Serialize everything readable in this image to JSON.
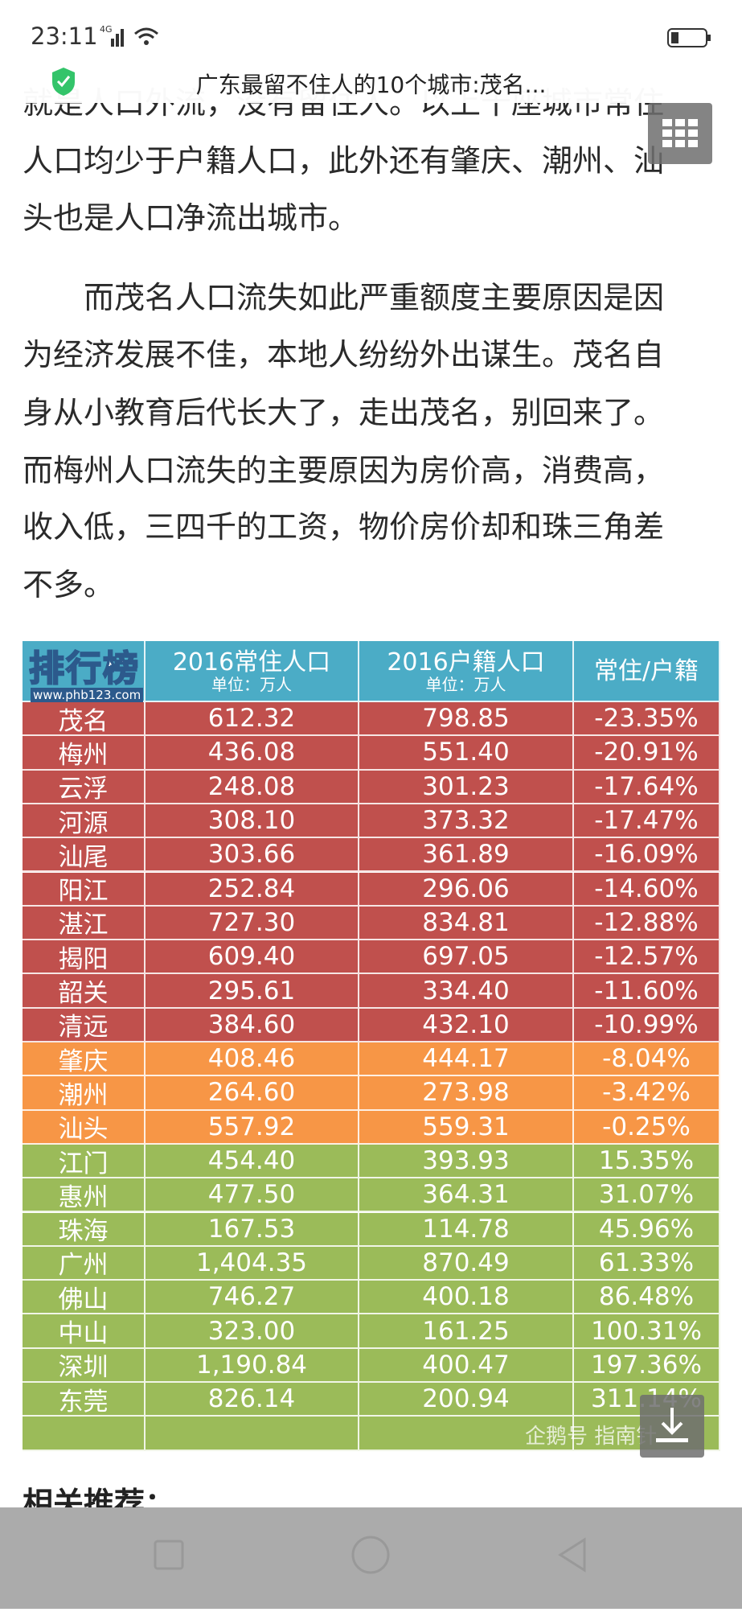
{
  "status_bar": {
    "time": "23:11",
    "network": "4G"
  },
  "title_bar": {
    "title": "广东最留不住人的10个城市:茂名..."
  },
  "article": {
    "paragraphs": [
      [
        "就是人口外流，没有留住人。以上十座城市常住",
        "人口均少于户籍人口，此外还有肇庆、潮州、汕",
        "头也是人口净流出城市。"
      ],
      [
        "而茂名人口流失如此严重额度主要原因是因",
        "为经济发展不佳，本地人纷纷外出谋生。茂名自",
        "身从小教育后代长大了，走出茂名，别回来了。",
        "而梅州人口流失的主要原因为房价高，消费高，",
        "收入低，三四千的工资，物价房价却和珠三角差",
        "不多。"
      ]
    ],
    "related": "相关推荐："
  },
  "table": {
    "logo": "排行榜",
    "logo_url": "www.phb123.com",
    "header": [
      {
        "title": "2016常住人口",
        "unit": "单位：万人"
      },
      {
        "title": "2016户籍人口",
        "unit": "单位：万人"
      },
      {
        "title": "常住/户籍"
      }
    ],
    "rows": [
      [
        "茂名",
        "612.32",
        "798.85",
        "-23.35%"
      ],
      [
        "梅州",
        "436.08",
        "551.40",
        "-20.91%"
      ],
      [
        "云浮",
        "248.08",
        "301.23",
        "-17.64%"
      ],
      [
        "河源",
        "308.10",
        "373.32",
        "-17.47%"
      ],
      [
        "汕尾",
        "303.66",
        "361.89",
        "-16.09%"
      ],
      [
        "阳江",
        "252.84",
        "296.06",
        "-14.60%"
      ],
      [
        "湛江",
        "727.30",
        "834.81",
        "-12.88%"
      ],
      [
        "揭阳",
        "609.40",
        "697.05",
        "-12.57%"
      ],
      [
        "韶关",
        "295.61",
        "334.40",
        "-11.60%"
      ],
      [
        "清远",
        "384.60",
        "432.10",
        "-10.99%"
      ],
      [
        "肇庆",
        "408.46",
        "444.17",
        "-8.04%"
      ],
      [
        "潮州",
        "264.60",
        "273.98",
        "-3.42%"
      ],
      [
        "汕头",
        "557.92",
        "559.31",
        "-0.25%"
      ],
      [
        "江门",
        "454.40",
        "393.93",
        "15.35%"
      ],
      [
        "惠州",
        "477.50",
        "364.31",
        "31.07%"
      ],
      [
        "珠海",
        "167.53",
        "114.78",
        "45.96%"
      ],
      [
        "广州",
        "1,404.35",
        "870.49",
        "61.33%"
      ],
      [
        "佛山",
        "746.27",
        "400.18",
        "86.48%"
      ],
      [
        "中山",
        "323.00",
        "161.25",
        "100.31%"
      ],
      [
        "深圳",
        "1,190.84",
        "400.47",
        "197.36%"
      ],
      [
        "东莞",
        "826.14",
        "200.94",
        "311.14%"
      ]
    ],
    "watermark": "企鹅号 指南针"
  }
}
